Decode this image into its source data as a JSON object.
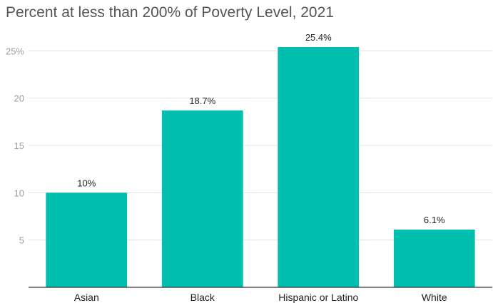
{
  "chart_data": {
    "type": "bar",
    "title": "Percent at less than 200% of Poverty Level, 2021",
    "categories": [
      "Asian",
      "Black",
      "Hispanic or Latino",
      "White"
    ],
    "values": [
      10,
      18.7,
      25.4,
      6.1
    ],
    "data_labels": [
      "10%",
      "18.7%",
      "25.4%",
      "6.1%"
    ],
    "y_ticks": [
      5,
      10,
      15,
      20,
      25
    ],
    "y_tick_labels": [
      "5",
      "10",
      "15",
      "20",
      "25%"
    ],
    "ylim": [
      0,
      25.4
    ],
    "grid": true,
    "bar_color": "#00bfae"
  }
}
